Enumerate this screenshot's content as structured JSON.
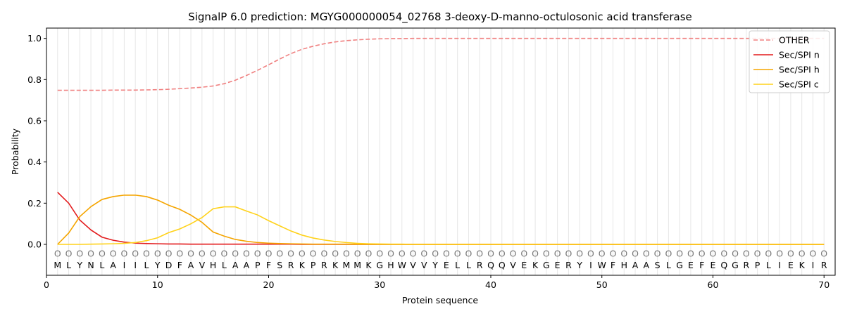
{
  "chart_data": {
    "type": "line",
    "title": "SignalP 6.0 prediction: MGYG000000054_02768 3-deoxy-D-manno-octulosonic acid transferase",
    "xlabel": "Protein sequence",
    "ylabel": "Probability",
    "xlim": [
      0,
      71
    ],
    "ylim": [
      -0.15,
      1.05
    ],
    "xticks": [
      0,
      10,
      20,
      30,
      40,
      50,
      60,
      70
    ],
    "yticks": [
      0.0,
      0.2,
      0.4,
      0.6,
      0.8,
      1.0
    ],
    "ytick_labels": [
      "0.0",
      "0.2",
      "0.4",
      "0.6",
      "0.8",
      "1.0"
    ],
    "grid": "vertical lines at each residue",
    "legend_position": "top-right",
    "sequence": [
      "M",
      "L",
      "Y",
      "N",
      "L",
      "A",
      "I",
      "I",
      "L",
      "Y",
      "D",
      "F",
      "A",
      "V",
      "H",
      "L",
      "A",
      "A",
      "P",
      "F",
      "S",
      "R",
      "K",
      "P",
      "R",
      "K",
      "M",
      "M",
      "K",
      "G",
      "H",
      "W",
      "V",
      "V",
      "Y",
      "E",
      "L",
      "L",
      "R",
      "Q",
      "Q",
      "V",
      "E",
      "K",
      "G",
      "E",
      "R",
      "Y",
      "I",
      "W",
      "F",
      "H",
      "A",
      "A",
      "S",
      "L",
      "G",
      "E",
      "F",
      "E",
      "Q",
      "G",
      "R",
      "P",
      "L",
      "I",
      "E",
      "K",
      "I",
      "R"
    ],
    "marker_label": "O",
    "series": [
      {
        "name": "OTHER",
        "color": "#f08080",
        "dash": true,
        "values": [
          0.748,
          0.748,
          0.748,
          0.748,
          0.748,
          0.749,
          0.749,
          0.749,
          0.75,
          0.751,
          0.753,
          0.756,
          0.759,
          0.763,
          0.769,
          0.78,
          0.797,
          0.82,
          0.845,
          0.872,
          0.9,
          0.926,
          0.947,
          0.962,
          0.974,
          0.983,
          0.989,
          0.993,
          0.996,
          0.998,
          0.999,
          0.999,
          1.0,
          1.0,
          1.0,
          1.0,
          1.0,
          1.0,
          1.0,
          1.0,
          1.0,
          1.0,
          1.0,
          1.0,
          1.0,
          1.0,
          1.0,
          1.0,
          1.0,
          1.0,
          1.0,
          1.0,
          1.0,
          1.0,
          1.0,
          1.0,
          1.0,
          1.0,
          1.0,
          1.0,
          1.0,
          1.0,
          1.0,
          1.0,
          1.0,
          1.0,
          1.0,
          1.0,
          1.0,
          1.0
        ]
      },
      {
        "name": "Sec/SPI n",
        "color": "#e31a1c",
        "dash": false,
        "values": [
          0.253,
          0.2,
          0.118,
          0.07,
          0.035,
          0.02,
          0.011,
          0.006,
          0.004,
          0.003,
          0.002,
          0.002,
          0.001,
          0.001,
          0.001,
          0.001,
          0.001,
          0.001,
          0.001,
          0.001,
          0.001,
          0.001,
          0,
          0,
          0,
          0,
          0,
          0,
          0,
          0,
          0,
          0,
          0,
          0,
          0,
          0,
          0,
          0,
          0,
          0,
          0,
          0,
          0,
          0,
          0,
          0,
          0,
          0,
          0,
          0,
          0,
          0,
          0,
          0,
          0,
          0,
          0,
          0,
          0,
          0,
          0,
          0,
          0,
          0,
          0,
          0,
          0,
          0,
          0,
          0
        ]
      },
      {
        "name": "Sec/SPI h",
        "color": "#f5a500",
        "dash": false,
        "values": [
          0.0,
          0.055,
          0.135,
          0.183,
          0.218,
          0.232,
          0.239,
          0.239,
          0.232,
          0.215,
          0.19,
          0.17,
          0.142,
          0.107,
          0.06,
          0.04,
          0.024,
          0.015,
          0.009,
          0.006,
          0.004,
          0.003,
          0.002,
          0.001,
          0.001,
          0.001,
          0.001,
          0,
          0,
          0,
          0,
          0,
          0,
          0,
          0,
          0,
          0,
          0,
          0,
          0,
          0,
          0,
          0,
          0,
          0,
          0,
          0,
          0,
          0,
          0,
          0,
          0,
          0,
          0,
          0,
          0,
          0,
          0,
          0,
          0,
          0,
          0,
          0,
          0,
          0,
          0,
          0,
          0,
          0,
          0
        ]
      },
      {
        "name": "Sec/SPI c",
        "color": "#ffd21a",
        "dash": false,
        "values": [
          0.0,
          0.0,
          0.0,
          0.001,
          0.002,
          0.003,
          0.005,
          0.009,
          0.018,
          0.032,
          0.057,
          0.075,
          0.1,
          0.13,
          0.173,
          0.182,
          0.182,
          0.162,
          0.143,
          0.115,
          0.09,
          0.065,
          0.045,
          0.031,
          0.021,
          0.014,
          0.009,
          0.005,
          0.003,
          0.002,
          0.001,
          0.001,
          0,
          0,
          0,
          0,
          0,
          0,
          0,
          0,
          0,
          0,
          0,
          0,
          0,
          0,
          0,
          0,
          0,
          0,
          0,
          0,
          0,
          0,
          0,
          0,
          0,
          0,
          0,
          0,
          0,
          0,
          0,
          0,
          0,
          0,
          0,
          0,
          0,
          0
        ]
      }
    ]
  }
}
